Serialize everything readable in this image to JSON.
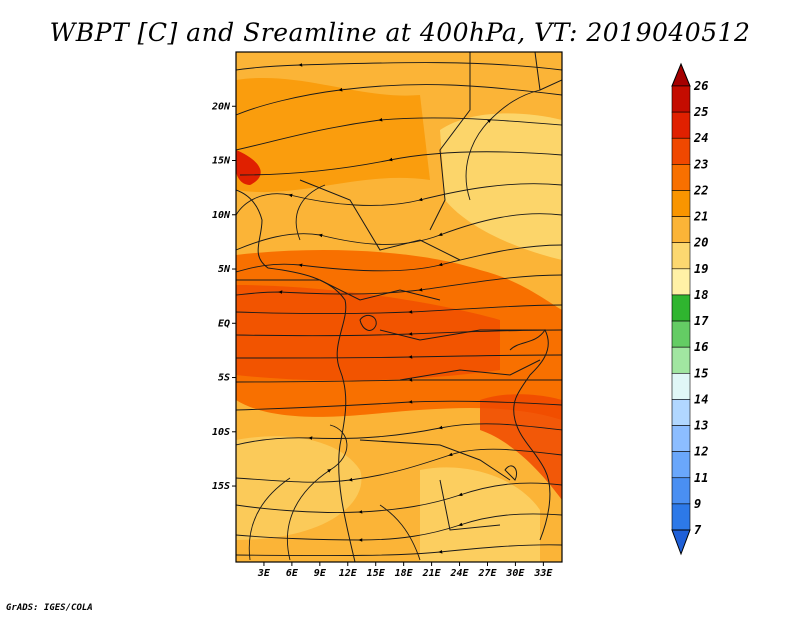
{
  "title": "WBPT [C] and Sreamline at 400hPa, VT: 2019040512",
  "credit": "GrADS: IGES/COLA",
  "map": {
    "lon_range": [
      0,
      35
    ],
    "lat_range": [
      -22,
      25
    ],
    "x_ticks": [
      "3E",
      "6E",
      "9E",
      "12E",
      "15E",
      "18E",
      "21E",
      "24E",
      "27E",
      "30E",
      "33E"
    ],
    "x_tick_values": [
      3,
      6,
      9,
      12,
      15,
      18,
      21,
      24,
      27,
      30,
      33
    ],
    "y_ticks": [
      "20N",
      "15N",
      "10N",
      "5N",
      "EQ",
      "5S",
      "10S",
      "15S"
    ],
    "y_tick_values": [
      20,
      15,
      10,
      5,
      0,
      -5,
      -10,
      -15
    ]
  },
  "colorbar": {
    "labels": [
      "26",
      "25",
      "24",
      "23",
      "22",
      "21",
      "20",
      "19",
      "18",
      "17",
      "16",
      "15",
      "14",
      "13",
      "12",
      "11",
      "9",
      "7"
    ],
    "colors": [
      "#a50000",
      "#c40c00",
      "#e02000",
      "#f04800",
      "#f87000",
      "#f99500",
      "#fbb437",
      "#fcd870",
      "#fff1a6",
      "#2fb52f",
      "#64cc64",
      "#a1e6a1",
      "#e0f7f7",
      "#b1d7ff",
      "#8cbdff",
      "#6aa7fb",
      "#4a8ff2",
      "#2d79e8",
      "#1f60d8"
    ],
    "top_color": "#a50000",
    "bottom_color": "#1f60d8"
  }
}
